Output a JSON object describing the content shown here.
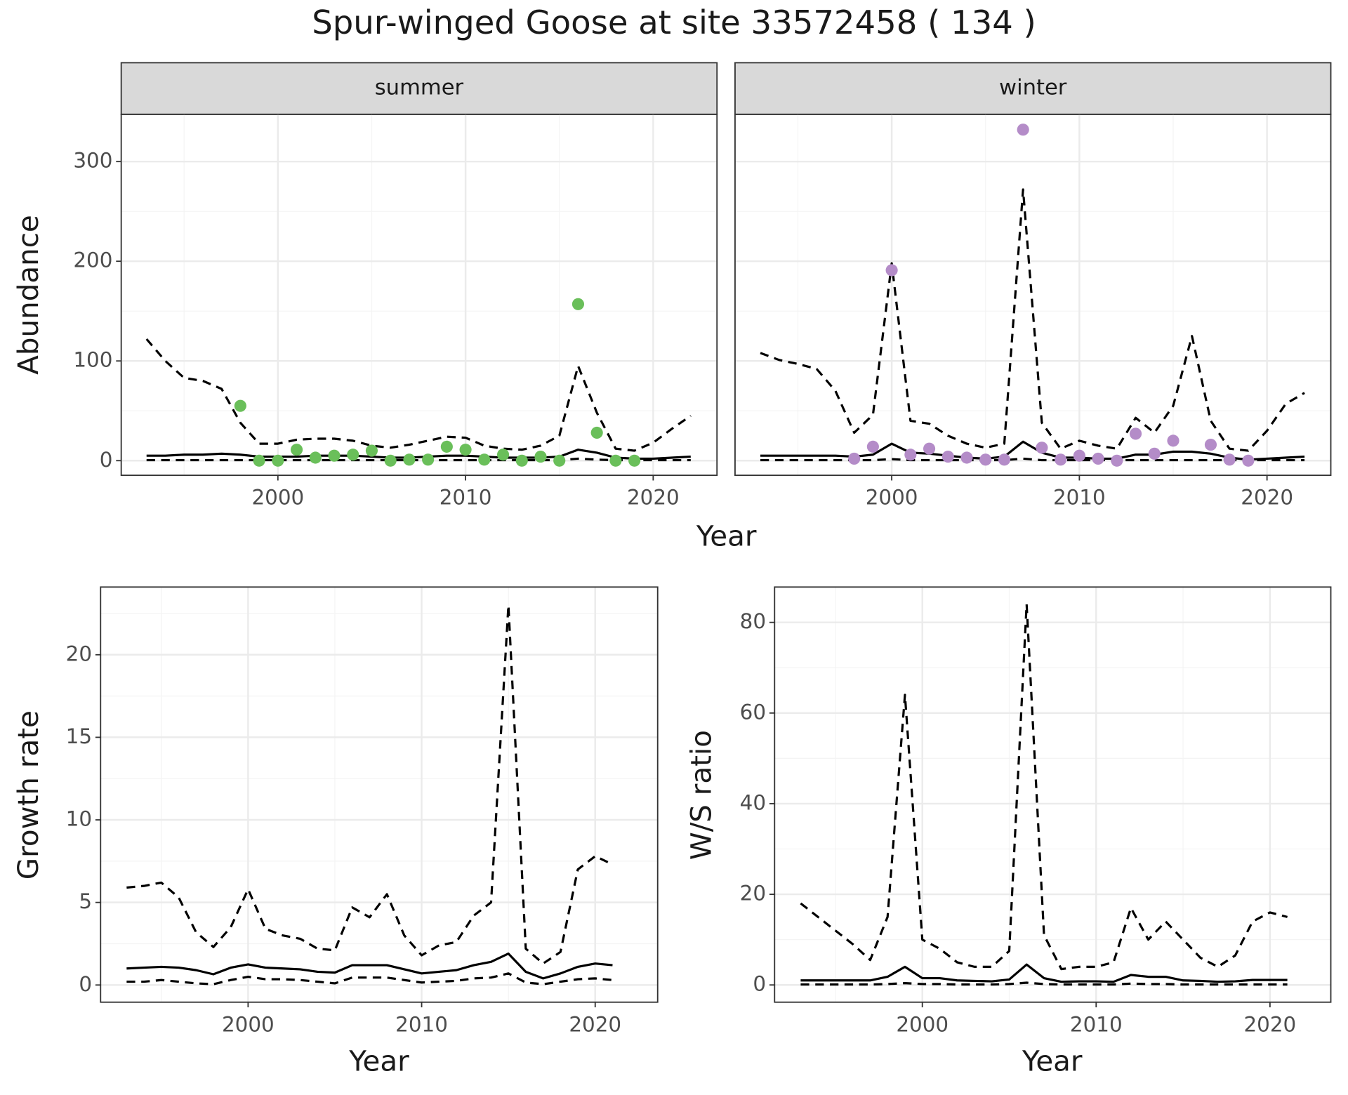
{
  "title": "Spur-winged Goose at site 33572458 ( 134 )",
  "chart_data": [
    {
      "type": "line",
      "strip": "summer",
      "ylabel": "Abundance",
      "xlabel": "Year",
      "xlim": [
        1991.65,
        2023.4
      ],
      "ylim": [
        -14.7,
        347.4
      ],
      "xticks": [
        2000,
        2010,
        2020
      ],
      "yticks": [
        0,
        100,
        200,
        300
      ],
      "xminor": [
        1995,
        2005,
        2015
      ],
      "yminor": [
        50,
        150,
        250
      ],
      "grid": true,
      "ytick_labels": true,
      "series": [
        {
          "style": "dashed",
          "color": "#000000",
          "x": [
            1993,
            1994,
            1995,
            1996,
            1997,
            1998,
            1999,
            2000,
            2001,
            2002,
            2003,
            2004,
            2005,
            2006,
            2007,
            2008,
            2009,
            2010,
            2011,
            2012,
            2013,
            2014,
            2015,
            2016,
            2017,
            2018,
            2019,
            2020,
            2021,
            2022
          ],
          "values": [
            122,
            100,
            83,
            80,
            72,
            38,
            17,
            17,
            21,
            22,
            22,
            20,
            15,
            13,
            16,
            20,
            24,
            23,
            15,
            12,
            11,
            15,
            25,
            95,
            48,
            12,
            10,
            18,
            32,
            45
          ]
        },
        {
          "style": "solid",
          "color": "#000000",
          "x": [
            1993,
            1994,
            1995,
            1996,
            1997,
            1998,
            1999,
            2000,
            2001,
            2002,
            2003,
            2004,
            2005,
            2006,
            2007,
            2008,
            2009,
            2010,
            2011,
            2012,
            2013,
            2014,
            2015,
            2016,
            2017,
            2018,
            2019,
            2020,
            2021,
            2022
          ],
          "values": [
            5,
            5,
            6,
            6,
            7,
            6,
            4,
            4,
            4,
            5,
            5,
            5,
            4,
            3,
            3,
            4,
            5,
            5,
            4,
            3,
            3,
            3,
            4,
            11,
            8,
            3,
            2,
            2,
            3,
            4
          ]
        },
        {
          "style": "dashed",
          "color": "#000000",
          "x": [
            1993,
            1994,
            1995,
            1996,
            1997,
            1998,
            1999,
            2000,
            2001,
            2002,
            2003,
            2004,
            2005,
            2006,
            2007,
            2008,
            2009,
            2010,
            2011,
            2012,
            2013,
            2014,
            2015,
            2016,
            2017,
            2018,
            2019,
            2020,
            2021,
            2022
          ],
          "values": [
            0.5,
            0.5,
            0.5,
            0.5,
            0.5,
            0.5,
            0.5,
            0.5,
            0.5,
            0.5,
            0.5,
            0.5,
            0.5,
            0.5,
            0.5,
            0.5,
            0.5,
            0.5,
            0.5,
            0.5,
            0.5,
            0.5,
            0.5,
            2,
            1,
            0.5,
            0.5,
            0.5,
            0.5,
            0.5
          ]
        },
        {
          "style": "points",
          "color": "#6abf5a",
          "x": [
            1998,
            1999,
            2000,
            2001,
            2002,
            2003,
            2004,
            2005,
            2006,
            2007,
            2008,
            2009,
            2010,
            2011,
            2012,
            2013,
            2014,
            2015,
            2016,
            2017,
            2018,
            2019
          ],
          "values": [
            55,
            0,
            0,
            11,
            3,
            5,
            6,
            10,
            0,
            1,
            1,
            14,
            11,
            1,
            6,
            0,
            4,
            0,
            157,
            28,
            0,
            0
          ]
        }
      ]
    },
    {
      "type": "line",
      "strip": "winter",
      "xlim": [
        1991.65,
        2023.4
      ],
      "ylim": [
        -14.7,
        347.4
      ],
      "xticks": [
        2000,
        2010,
        2020
      ],
      "yticks": [
        0,
        100,
        200,
        300
      ],
      "xminor": [
        1995,
        2005,
        2015
      ],
      "yminor": [
        50,
        150,
        250
      ],
      "grid": true,
      "ytick_labels": false,
      "series": [
        {
          "style": "dashed",
          "color": "#000000",
          "x": [
            1993,
            1994,
            1995,
            1996,
            1997,
            1998,
            1999,
            2000,
            2001,
            2002,
            2003,
            2004,
            2005,
            2006,
            2007,
            2008,
            2009,
            2010,
            2011,
            2012,
            2013,
            2014,
            2015,
            2016,
            2017,
            2018,
            2019,
            2020,
            2021,
            2022
          ],
          "values": [
            108,
            101,
            97,
            92,
            70,
            28,
            46,
            198,
            40,
            37,
            25,
            17,
            13,
            17,
            272,
            38,
            12,
            20,
            15,
            12,
            43,
            28,
            55,
            125,
            40,
            12,
            10,
            30,
            57,
            68
          ]
        },
        {
          "style": "solid",
          "color": "#000000",
          "x": [
            1993,
            1994,
            1995,
            1996,
            1997,
            1998,
            1999,
            2000,
            2001,
            2002,
            2003,
            2004,
            2005,
            2006,
            2007,
            2008,
            2009,
            2010,
            2011,
            2012,
            2013,
            2014,
            2015,
            2016,
            2017,
            2018,
            2019,
            2020,
            2021,
            2022
          ],
          "values": [
            5,
            5,
            5,
            5,
            5,
            4,
            6,
            17,
            8,
            7,
            5,
            3,
            2,
            4,
            19,
            8,
            3,
            3,
            2,
            2,
            6,
            6,
            9,
            9,
            7,
            3,
            1,
            2,
            3,
            4
          ]
        },
        {
          "style": "dashed",
          "color": "#000000",
          "x": [
            1993,
            1994,
            1995,
            1996,
            1997,
            1998,
            1999,
            2000,
            2001,
            2002,
            2003,
            2004,
            2005,
            2006,
            2007,
            2008,
            2009,
            2010,
            2011,
            2012,
            2013,
            2014,
            2015,
            2016,
            2017,
            2018,
            2019,
            2020,
            2021,
            2022
          ],
          "values": [
            0.5,
            0.5,
            0.5,
            0.5,
            0.5,
            0.5,
            0.5,
            1.5,
            0.5,
            0.5,
            0.5,
            0.5,
            0.5,
            0.5,
            2,
            0.5,
            0.5,
            0.5,
            0.5,
            0.5,
            0.5,
            0.5,
            0.5,
            0.5,
            0.5,
            0.5,
            0.5,
            0.5,
            0.5,
            0.5
          ]
        },
        {
          "style": "points",
          "color": "#b48cc8",
          "x": [
            1998,
            1999,
            2000,
            2001,
            2002,
            2003,
            2004,
            2005,
            2006,
            2007,
            2008,
            2009,
            2010,
            2011,
            2012,
            2013,
            2014,
            2015,
            2016,
            2017,
            2018,
            2019
          ],
          "values": [
            2,
            14,
            191,
            6,
            12,
            4,
            3,
            1,
            1,
            332,
            13,
            1,
            5,
            2,
            0,
            27,
            7,
            20,
            null,
            16,
            1,
            0
          ]
        }
      ]
    },
    {
      "type": "line",
      "ylabel": "Growth rate",
      "xlabel": "Year",
      "xlim": [
        1991.5,
        2023.6
      ],
      "ylim": [
        -1.04,
        24.1
      ],
      "xticks": [
        2000,
        2010,
        2020
      ],
      "yticks": [
        0,
        5,
        10,
        15,
        20
      ],
      "xminor": [
        1995,
        2005,
        2015
      ],
      "yminor": [
        2.5,
        7.5,
        12.5,
        17.5,
        22.5
      ],
      "grid": true,
      "ytick_labels": true,
      "series": [
        {
          "style": "dashed",
          "color": "#000000",
          "x": [
            1993,
            1994,
            1995,
            1996,
            1997,
            1998,
            1999,
            2000,
            2001,
            2002,
            2003,
            2004,
            2005,
            2006,
            2007,
            2008,
            2009,
            2010,
            2011,
            2012,
            2013,
            2014,
            2015,
            2016,
            2017,
            2018,
            2019,
            2020,
            2021
          ],
          "values": [
            5.9,
            6.0,
            6.2,
            5.3,
            3.2,
            2.3,
            3.5,
            5.8,
            3.4,
            3.0,
            2.8,
            2.2,
            2.1,
            4.7,
            4.1,
            5.5,
            3.0,
            1.8,
            2.4,
            2.6,
            4.2,
            5.0,
            23,
            2.2,
            1.3,
            2.0,
            7.0,
            7.8,
            7.3
          ]
        },
        {
          "style": "solid",
          "color": "#000000",
          "x": [
            1993,
            1994,
            1995,
            1996,
            1997,
            1998,
            1999,
            2000,
            2001,
            2002,
            2003,
            2004,
            2005,
            2006,
            2007,
            2008,
            2009,
            2010,
            2011,
            2012,
            2013,
            2014,
            2015,
            2016,
            2017,
            2018,
            2019,
            2020,
            2021
          ],
          "values": [
            1.0,
            1.05,
            1.1,
            1.05,
            0.9,
            0.65,
            1.05,
            1.25,
            1.05,
            1.0,
            0.95,
            0.8,
            0.75,
            1.2,
            1.2,
            1.2,
            0.95,
            0.7,
            0.8,
            0.9,
            1.2,
            1.4,
            1.9,
            0.8,
            0.4,
            0.7,
            1.1,
            1.3,
            1.2
          ]
        },
        {
          "style": "dashed",
          "color": "#000000",
          "x": [
            1993,
            1994,
            1995,
            1996,
            1997,
            1998,
            1999,
            2000,
            2001,
            2002,
            2003,
            2004,
            2005,
            2006,
            2007,
            2008,
            2009,
            2010,
            2011,
            2012,
            2013,
            2014,
            2015,
            2016,
            2017,
            2018,
            2019,
            2020,
            2021
          ],
          "values": [
            0.2,
            0.2,
            0.3,
            0.2,
            0.1,
            0.05,
            0.3,
            0.5,
            0.35,
            0.35,
            0.3,
            0.2,
            0.1,
            0.45,
            0.45,
            0.45,
            0.3,
            0.15,
            0.2,
            0.25,
            0.4,
            0.45,
            0.7,
            0.15,
            0.05,
            0.2,
            0.35,
            0.4,
            0.3
          ]
        }
      ]
    },
    {
      "type": "line",
      "ylabel": "W/S ratio",
      "xlabel": "Year",
      "xlim": [
        1991.5,
        2023.5
      ],
      "ylim": [
        -3.8,
        87.8
      ],
      "xticks": [
        2000,
        2010,
        2020
      ],
      "yticks": [
        0,
        20,
        40,
        60,
        80
      ],
      "xminor": [
        1995,
        2005,
        2015
      ],
      "yminor": [
        10,
        30,
        50,
        70
      ],
      "grid": true,
      "ytick_labels": true,
      "series": [
        {
          "style": "dashed",
          "color": "#000000",
          "x": [
            1993,
            1994,
            1995,
            1996,
            1997,
            1998,
            1999,
            2000,
            2001,
            2002,
            2003,
            2004,
            2005,
            2006,
            2007,
            2008,
            2009,
            2010,
            2011,
            2012,
            2013,
            2014,
            2015,
            2016,
            2017,
            2018,
            2019,
            2020,
            2021
          ],
          "values": [
            18,
            15,
            12,
            9,
            5.5,
            15,
            64,
            10,
            8,
            5,
            4,
            4,
            7.5,
            84,
            11,
            3.5,
            4,
            4,
            5,
            17,
            10,
            14,
            10,
            6,
            4,
            6.5,
            14,
            16,
            15
          ]
        },
        {
          "style": "solid",
          "color": "#000000",
          "x": [
            1993,
            1994,
            1995,
            1996,
            1997,
            1998,
            1999,
            2000,
            2001,
            2002,
            2003,
            2004,
            2005,
            2006,
            2007,
            2008,
            2009,
            2010,
            2011,
            2012,
            2013,
            2014,
            2015,
            2016,
            2017,
            2018,
            2019,
            2020,
            2021
          ],
          "values": [
            1,
            1,
            1,
            1,
            1,
            1.8,
            4,
            1.5,
            1.5,
            1,
            0.9,
            0.8,
            1.2,
            4.5,
            1.5,
            0.7,
            0.8,
            0.8,
            0.7,
            2.2,
            1.8,
            1.8,
            1,
            0.9,
            0.7,
            0.8,
            1.1,
            1.1,
            1.1
          ]
        },
        {
          "style": "dashed",
          "color": "#000000",
          "x": [
            1993,
            1994,
            1995,
            1996,
            1997,
            1998,
            1999,
            2000,
            2001,
            2002,
            2003,
            2004,
            2005,
            2006,
            2007,
            2008,
            2009,
            2010,
            2011,
            2012,
            2013,
            2014,
            2015,
            2016,
            2017,
            2018,
            2019,
            2020,
            2021
          ],
          "values": [
            0.1,
            0.1,
            0.1,
            0.1,
            0.1,
            0.2,
            0.4,
            0.2,
            0.2,
            0.1,
            0.1,
            0.1,
            0.2,
            0.5,
            0.2,
            0.1,
            0.1,
            0.1,
            0.1,
            0.3,
            0.2,
            0.2,
            0.1,
            0.1,
            0.1,
            0.1,
            0.1,
            0.1,
            0.1
          ]
        }
      ]
    }
  ]
}
